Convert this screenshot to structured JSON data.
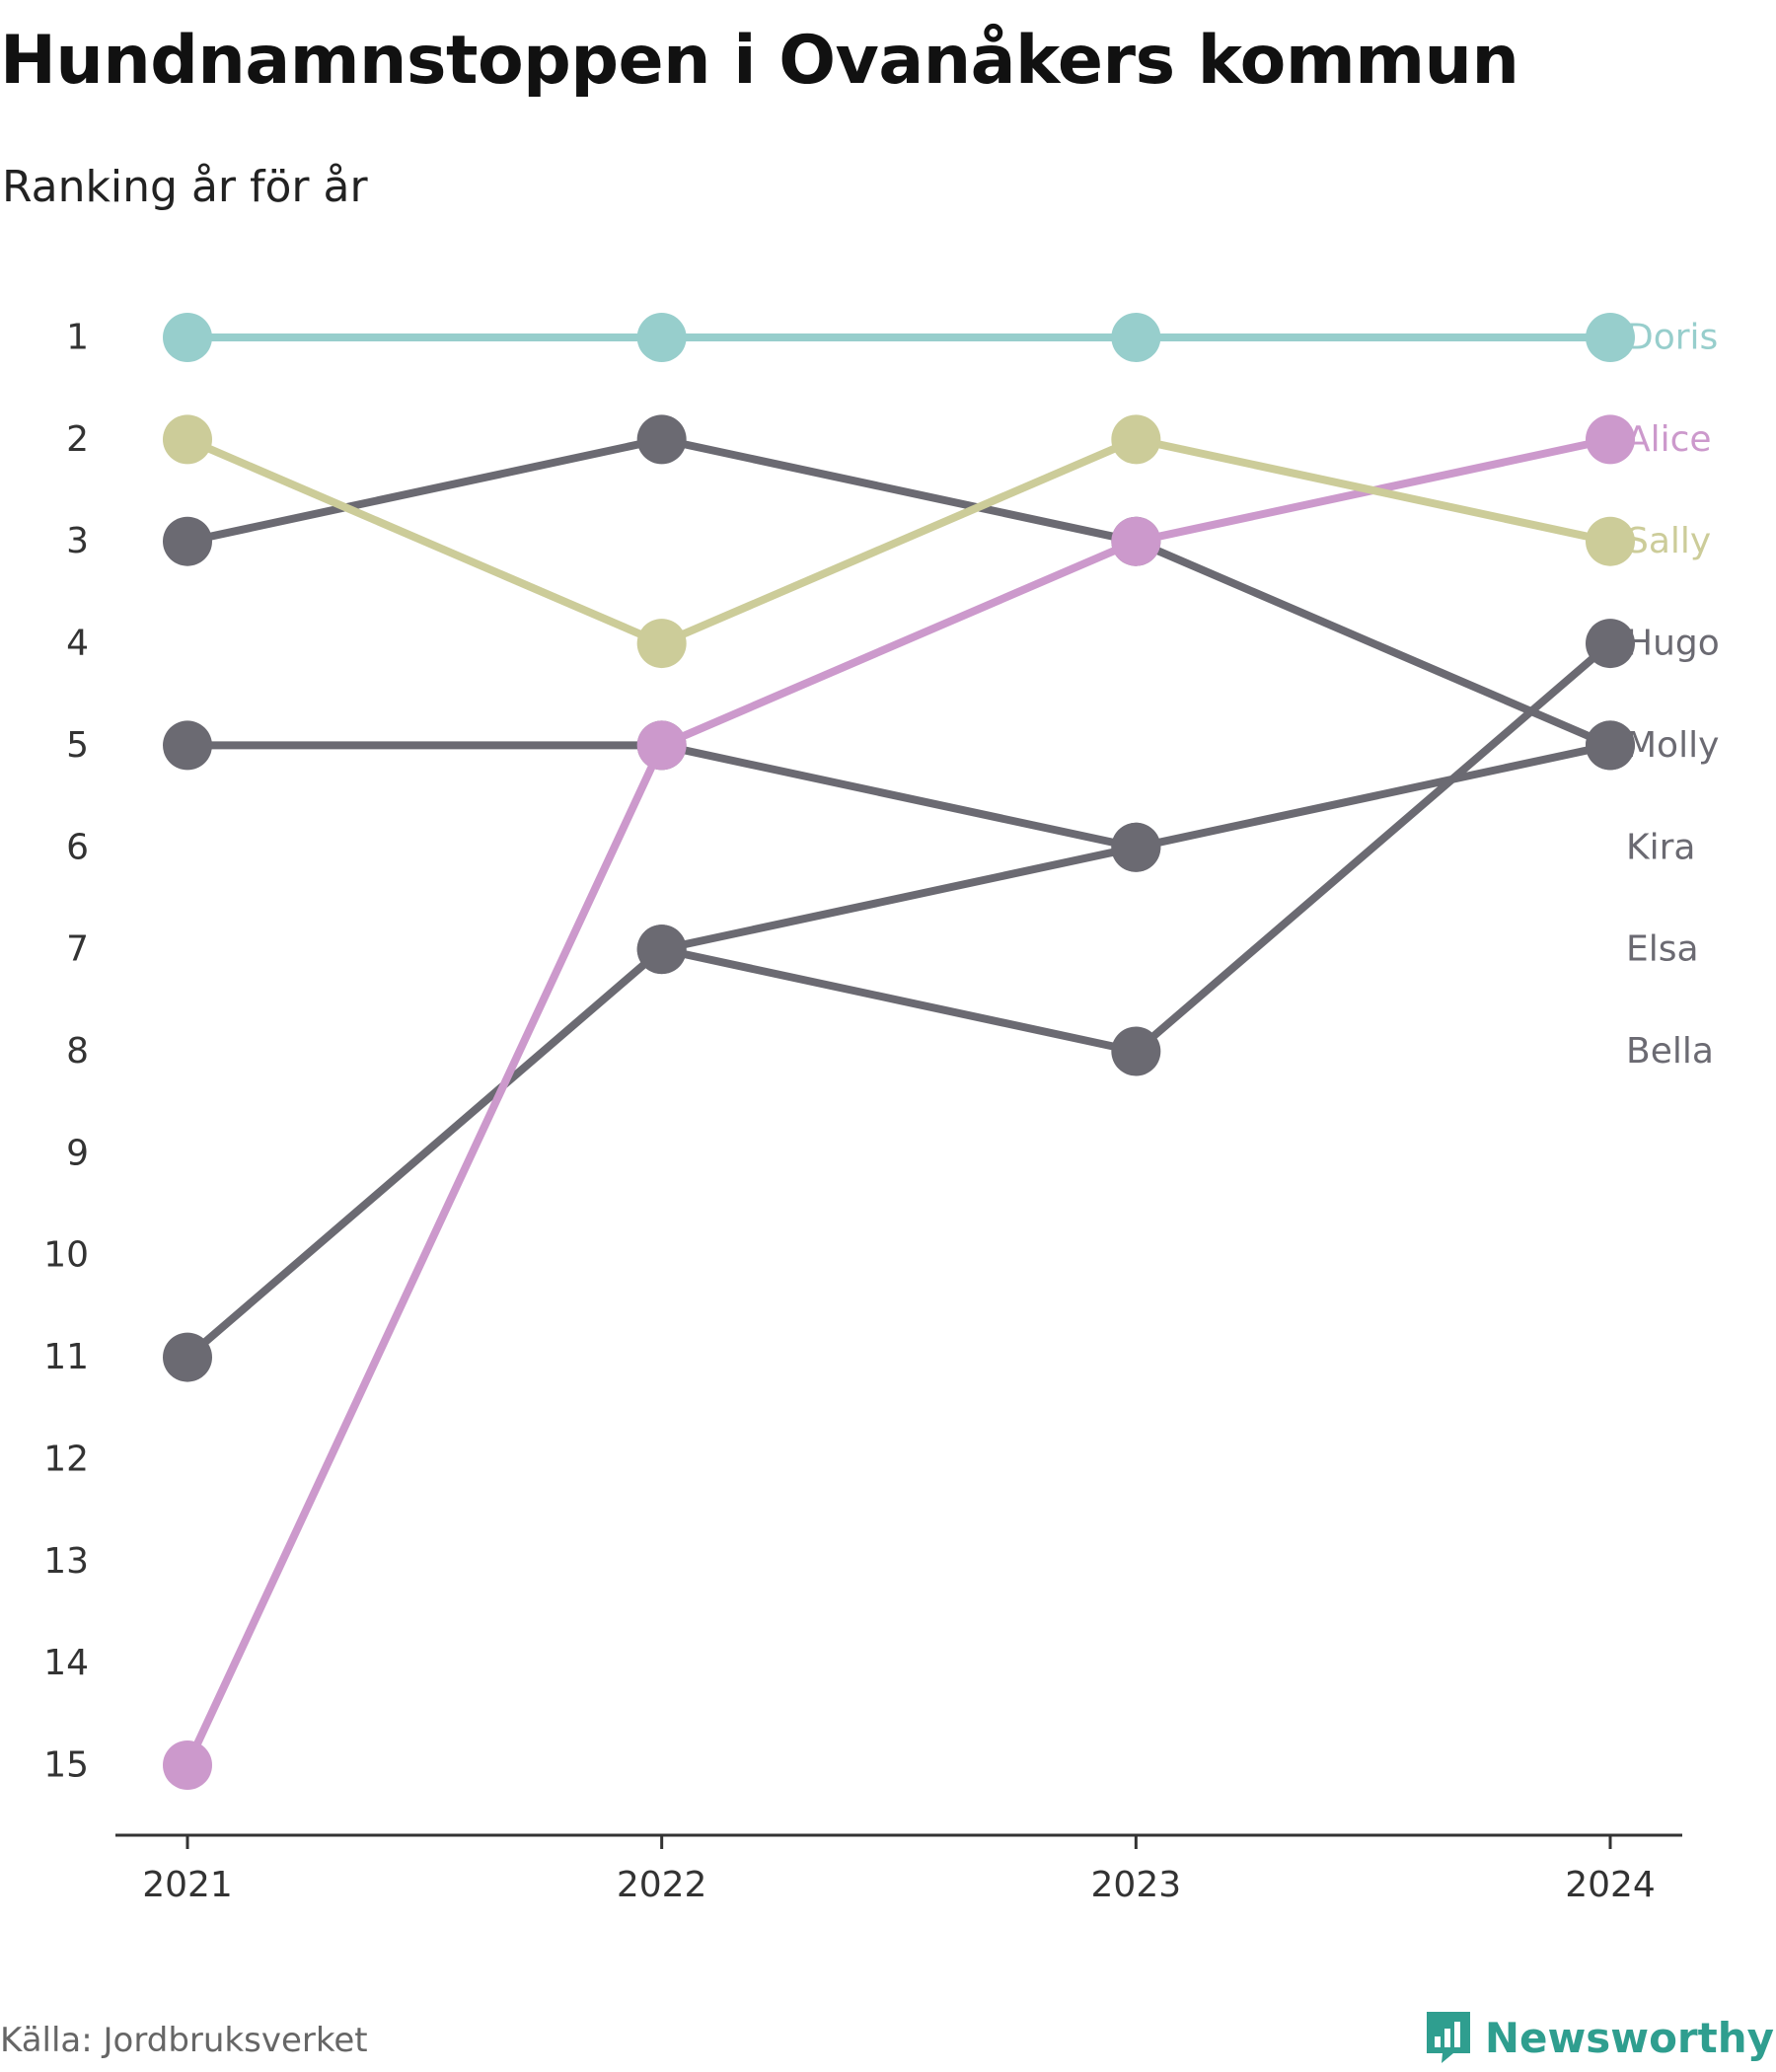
{
  "header": {
    "title": "Hundnamnstoppen i Ovanåkers kommun",
    "subtitle": "Ranking år för år"
  },
  "footer": {
    "source": "Källa: Jordbruksverket",
    "brand": "Newsworthy",
    "brand_icon": "bar-chart-speech-bubble-icon",
    "brand_color": "#2f9e8f"
  },
  "chart_data": {
    "type": "line",
    "title": "Hundnamnstoppen i Ovanåkers kommun",
    "subtitle": "Ranking år för år",
    "x": [
      "2021",
      "2022",
      "2023",
      "2024"
    ],
    "y_ticks": [
      1,
      2,
      3,
      4,
      5,
      6,
      7,
      8,
      9,
      10,
      11,
      12,
      13,
      14,
      15
    ],
    "ylim": [
      1,
      15
    ],
    "y_reversed": true,
    "grid": false,
    "legend": "end-labels-right",
    "series": [
      {
        "name": "Doris",
        "values": [
          1,
          1,
          1,
          1
        ],
        "color": "#97cecc",
        "label_color": "#97cecc"
      },
      {
        "name": "Alice",
        "values": [
          15,
          5,
          3,
          2
        ],
        "color": "#cc99cc",
        "label_color": "#cc99cc"
      },
      {
        "name": "Sally",
        "values": [
          2,
          4,
          2,
          3
        ],
        "color": "#cccc99",
        "label_color": "#cccc99"
      },
      {
        "name": "Hugo",
        "values": [
          11,
          7,
          8,
          4
        ],
        "color": "#6b6a72",
        "label_color": "#6b6a72"
      },
      {
        "name": "Molly",
        "values": [
          3,
          2,
          3,
          5
        ],
        "color": "#6b6a72",
        "label_color": "#6b6a72"
      },
      {
        "name": "Kira",
        "values": [
          5,
          5,
          6,
          null
        ],
        "color": "#6b6a72",
        "label_color": "#6b6a72"
      },
      {
        "name": "Elsa",
        "values": [
          null,
          7,
          6,
          5
        ],
        "color": "#6b6a72",
        "label_color": "#6b6a72"
      },
      {
        "name": "Bella",
        "values": [
          null,
          null,
          null,
          null
        ],
        "color": "#6b6a72",
        "label_color": "#6b6a72"
      }
    ]
  }
}
